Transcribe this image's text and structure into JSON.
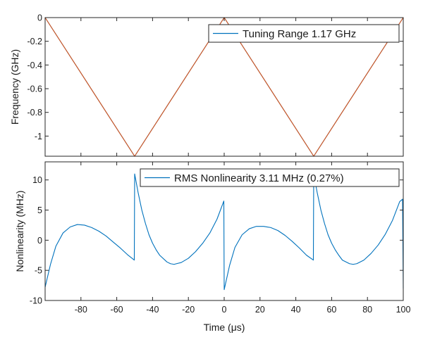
{
  "chart_data": [
    {
      "type": "line",
      "title": "",
      "xlabel": "",
      "ylabel": "Frequency (GHz)",
      "xlim": [
        -100,
        100
      ],
      "ylim": [
        -1.17,
        0
      ],
      "yticks": [
        0,
        -0.2,
        -0.4,
        -0.6,
        -0.8,
        -1
      ],
      "ytick_labels": [
        "0",
        "-0.2",
        "-0.4",
        "-0.6",
        "-0.8",
        "-1"
      ],
      "grid": false,
      "legend_position": "top-right",
      "series": [
        {
          "name": "Tuning Range 1.17 GHz",
          "color": "#0072bd",
          "x": [
            -100,
            -50,
            0,
            50,
            100
          ],
          "y": [
            0,
            -1.17,
            0,
            -1.17,
            0
          ]
        },
        {
          "name": "",
          "color": "#d95319",
          "x": [
            -100,
            -50,
            0,
            50,
            100
          ],
          "y": [
            0,
            -1.17,
            0,
            -1.17,
            0
          ]
        }
      ]
    },
    {
      "type": "line",
      "title": "",
      "xlabel": "Time (μs)",
      "ylabel": "Nonlinearity (MHz)",
      "xlim": [
        -100,
        100
      ],
      "ylim": [
        -10,
        13
      ],
      "xticks": [
        -80,
        -60,
        -40,
        -20,
        0,
        20,
        40,
        60,
        80,
        100
      ],
      "xtick_labels": [
        "-80",
        "-60",
        "-40",
        "-20",
        "0",
        "20",
        "40",
        "60",
        "80",
        "100"
      ],
      "yticks": [
        -10,
        -5,
        0,
        5,
        10
      ],
      "ytick_labels": [
        "-10",
        "-5",
        "0",
        "5",
        "10"
      ],
      "grid": false,
      "legend_position": "top-right",
      "series": [
        {
          "name": "RMS Nonlinearity 3.11 MHz (0.27%)",
          "color": "#0072bd",
          "x": [
            -100,
            -97,
            -94,
            -90,
            -86,
            -82,
            -78,
            -74,
            -70,
            -66,
            -62,
            -58,
            -54,
            -50.2,
            -50,
            -48,
            -46,
            -44,
            -42,
            -40,
            -38,
            -36,
            -32,
            -30,
            -28,
            -24,
            -20,
            -16,
            -12,
            -8,
            -4,
            -0.2,
            0,
            3,
            6,
            10,
            14,
            18,
            22,
            26,
            30,
            34,
            38,
            42,
            46,
            49.8,
            50,
            52,
            54,
            56,
            58,
            60,
            62,
            64,
            66,
            70,
            72,
            74,
            78,
            82,
            86,
            90,
            94,
            98,
            99.6,
            100
          ],
          "y": [
            -7.8,
            -4.0,
            -1.0,
            1.2,
            2.2,
            2.6,
            2.5,
            2.1,
            1.5,
            0.7,
            -0.3,
            -1.3,
            -2.4,
            -3.3,
            11.0,
            7.8,
            5.0,
            2.8,
            0.9,
            -0.5,
            -1.6,
            -2.5,
            -3.6,
            -3.9,
            -4.0,
            -3.7,
            -3.0,
            -1.9,
            -0.5,
            1.2,
            3.5,
            6.5,
            -8.2,
            -4.2,
            -1.2,
            0.9,
            1.9,
            2.3,
            2.3,
            2.1,
            1.6,
            0.8,
            -0.2,
            -1.3,
            -2.5,
            -3.3,
            11.0,
            7.8,
            5.0,
            2.8,
            0.9,
            -0.5,
            -1.6,
            -2.5,
            -3.3,
            -3.9,
            -4.0,
            -3.9,
            -3.3,
            -2.2,
            -0.8,
            1.0,
            3.3,
            6.4,
            6.8,
            -8.0
          ]
        }
      ]
    }
  ]
}
